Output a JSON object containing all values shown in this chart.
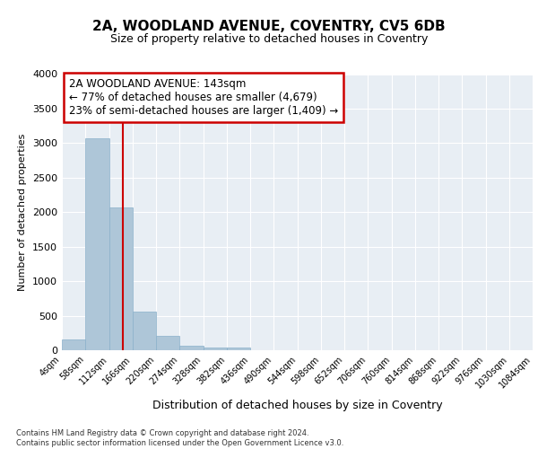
{
  "title1": "2A, WOODLAND AVENUE, COVENTRY, CV5 6DB",
  "title2": "Size of property relative to detached houses in Coventry",
  "xlabel": "Distribution of detached houses by size in Coventry",
  "ylabel": "Number of detached properties",
  "bin_edges": [
    4,
    58,
    112,
    166,
    220,
    274,
    328,
    382,
    436,
    490,
    544,
    598,
    652,
    706,
    760,
    814,
    868,
    922,
    976,
    1030,
    1084
  ],
  "bar_heights": [
    150,
    3070,
    2070,
    560,
    210,
    70,
    40,
    40,
    5,
    5,
    0,
    0,
    5,
    0,
    0,
    0,
    0,
    0,
    0,
    0
  ],
  "bar_color": "#aec6d8",
  "bar_edge_color": "#8ab0ca",
  "property_size": 143,
  "vline_color": "#cc0000",
  "annotation_text": "2A WOODLAND AVENUE: 143sqm\n← 77% of detached houses are smaller (4,679)\n23% of semi-detached houses are larger (1,409) →",
  "annotation_box_edgecolor": "#cc0000",
  "ylim_max": 4000,
  "yticks": [
    0,
    500,
    1000,
    1500,
    2000,
    2500,
    3000,
    3500,
    4000
  ],
  "background_color": "#e8eef4",
  "grid_color": "#ffffff",
  "footer_line1": "Contains HM Land Registry data © Crown copyright and database right 2024.",
  "footer_line2": "Contains public sector information licensed under the Open Government Licence v3.0."
}
